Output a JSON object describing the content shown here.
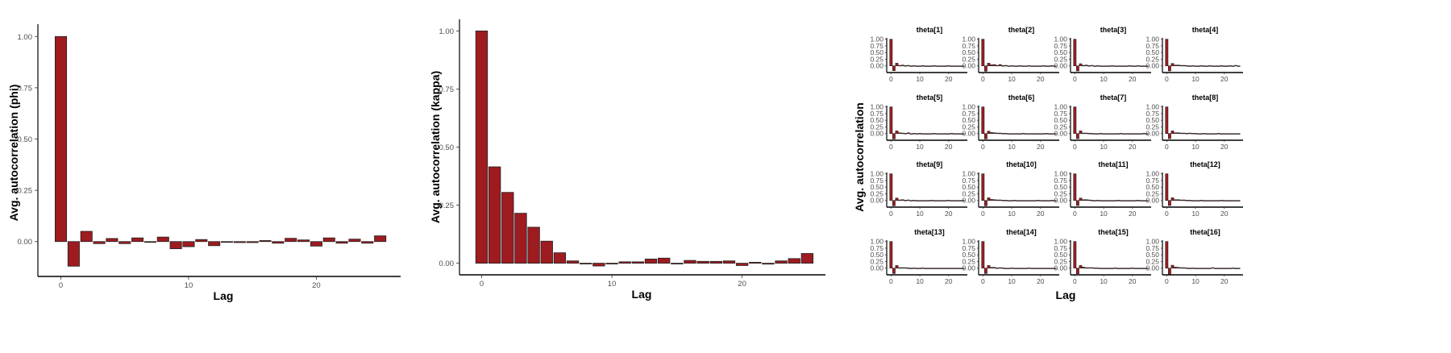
{
  "colors": {
    "bar_fill": "#9e1b20",
    "bar_stroke": "#222222",
    "axis": "#000000",
    "tick_text": "#4d4d4d"
  },
  "chart_data": [
    {
      "type": "bar",
      "xlabel": "Lag",
      "ylabel": "Avg. autocorrelation (phi)",
      "x": [
        0,
        1,
        2,
        3,
        4,
        5,
        6,
        7,
        8,
        9,
        10,
        11,
        12,
        13,
        14,
        15,
        16,
        17,
        18,
        19,
        20,
        21,
        22,
        23,
        24,
        25
      ],
      "values": [
        1.0,
        -0.12,
        0.05,
        -0.01,
        0.015,
        -0.01,
        0.018,
        -0.002,
        0.022,
        -0.035,
        -0.025,
        0.01,
        -0.02,
        0.0,
        -0.005,
        -0.005,
        0.005,
        -0.008,
        0.016,
        0.008,
        -0.022,
        0.018,
        -0.008,
        0.012,
        -0.008,
        0.028
      ],
      "xlim": [
        -1.8,
        26.6
      ],
      "ylim": [
        -0.17,
        1.06
      ],
      "xticks": [
        0,
        10,
        20
      ],
      "xtick_labels": [
        "0",
        "10",
        "20"
      ],
      "yticks": [
        0,
        0.25,
        0.5,
        0.75,
        1.0
      ],
      "ytick_labels": [
        "0.00",
        "0.25",
        "0.50",
        "0.75",
        "1.00"
      ]
    },
    {
      "type": "bar",
      "xlabel": "Lag",
      "ylabel": "Avg. autocorrelation (kappa)",
      "x": [
        0,
        1,
        2,
        3,
        4,
        5,
        6,
        7,
        8,
        9,
        10,
        11,
        12,
        13,
        14,
        15,
        16,
        17,
        18,
        19,
        20,
        21,
        22,
        23,
        24,
        25
      ],
      "values": [
        1.0,
        0.415,
        0.305,
        0.215,
        0.155,
        0.095,
        0.045,
        0.01,
        -0.002,
        -0.012,
        0.0,
        0.006,
        0.006,
        0.018,
        0.022,
        -0.002,
        0.012,
        0.008,
        0.008,
        0.01,
        -0.01,
        0.004,
        -0.004,
        0.01,
        0.02,
        0.042
      ],
      "xlim": [
        -1.7,
        26.4
      ],
      "ylim": [
        -0.05,
        1.05
      ],
      "xticks": [
        0,
        10,
        20
      ],
      "xtick_labels": [
        "0",
        "10",
        "20"
      ],
      "yticks": [
        0,
        0.25,
        0.5,
        0.75,
        1.0
      ],
      "ytick_labels": [
        "0.00",
        "0.25",
        "0.50",
        "0.75",
        "1.00"
      ]
    },
    {
      "type": "bar",
      "xlabel": "Lag",
      "ylabel": "Avg. autocorrelation",
      "facets": [
        "theta[1]",
        "theta[2]",
        "theta[3]",
        "theta[4]",
        "theta[5]",
        "theta[6]",
        "theta[7]",
        "theta[8]",
        "theta[9]",
        "theta[10]",
        "theta[11]",
        "theta[12]",
        "theta[13]",
        "theta[14]",
        "theta[15]",
        "theta[16]"
      ],
      "x": [
        0,
        1,
        2,
        3,
        4,
        5,
        6,
        7,
        8,
        9,
        10,
        11,
        12,
        13,
        14,
        15,
        16,
        17,
        18,
        19,
        20,
        21,
        22,
        23,
        24,
        25
      ],
      "facet_values": [
        [
          1.0,
          -0.18,
          0.1,
          0.02,
          0.03,
          0.01,
          0.02,
          0.0,
          0.01,
          -0.01,
          0.0,
          0.01,
          0.0,
          -0.01,
          0.0,
          0.01,
          0.0,
          -0.01,
          0.0,
          0.0,
          0.01,
          0.0,
          -0.01,
          0.0,
          0.0,
          -0.01
        ],
        [
          1.0,
          -0.2,
          0.1,
          0.04,
          0.05,
          0.02,
          0.05,
          0.01,
          0.02,
          0.0,
          0.01,
          0.0,
          -0.01,
          0.01,
          0.0,
          0.0,
          0.01,
          0.0,
          0.0,
          -0.01,
          0.0,
          0.01,
          0.0,
          0.0,
          0.01,
          0.0
        ],
        [
          1.0,
          -0.19,
          0.08,
          0.02,
          0.03,
          0.01,
          0.02,
          0.0,
          0.01,
          0.0,
          0.0,
          -0.01,
          0.0,
          0.01,
          0.0,
          0.0,
          0.0,
          -0.02,
          0.0,
          0.01,
          0.0,
          0.0,
          0.01,
          0.0,
          0.0,
          -0.01
        ],
        [
          1.0,
          -0.19,
          0.09,
          0.03,
          0.03,
          0.02,
          0.02,
          0.01,
          0.0,
          0.01,
          0.0,
          0.0,
          0.01,
          0.0,
          0.0,
          0.01,
          0.0,
          0.0,
          0.0,
          0.01,
          0.0,
          0.0,
          0.01,
          0.0,
          0.02,
          0.0
        ],
        [
          1.0,
          -0.2,
          0.1,
          0.03,
          0.02,
          0.01,
          0.03,
          0.0,
          0.01,
          0.0,
          0.01,
          0.0,
          0.0,
          -0.01,
          0.0,
          0.01,
          0.0,
          0.0,
          -0.01,
          0.0,
          0.0,
          0.01,
          0.0,
          0.0,
          0.0,
          0.0
        ],
        [
          1.0,
          -0.2,
          0.09,
          0.04,
          0.03,
          0.02,
          0.02,
          0.01,
          0.01,
          0.0,
          0.0,
          -0.01,
          0.0,
          0.0,
          0.01,
          0.0,
          0.0,
          0.0,
          0.0,
          -0.01,
          0.0,
          0.0,
          0.01,
          0.0,
          0.0,
          0.0
        ],
        [
          1.0,
          -0.19,
          0.1,
          0.02,
          0.02,
          0.01,
          0.01,
          0.0,
          0.0,
          0.01,
          0.0,
          0.0,
          -0.01,
          0.0,
          0.0,
          0.0,
          0.01,
          0.0,
          0.0,
          0.0,
          0.0,
          0.0,
          0.0,
          0.0,
          0.01,
          0.0
        ],
        [
          1.0,
          -0.19,
          0.1,
          0.03,
          0.03,
          0.02,
          0.02,
          0.01,
          0.02,
          0.01,
          0.01,
          0.0,
          0.0,
          0.01,
          0.0,
          0.0,
          0.0,
          0.0,
          0.01,
          0.0,
          0.0,
          0.0,
          0.0,
          0.0,
          0.0,
          0.0
        ],
        [
          1.0,
          -0.2,
          0.09,
          0.02,
          0.03,
          0.01,
          0.02,
          0.0,
          0.01,
          0.0,
          0.0,
          0.0,
          0.0,
          0.0,
          0.01,
          0.0,
          0.0,
          -0.01,
          0.0,
          0.0,
          0.01,
          0.0,
          0.0,
          0.0,
          0.0,
          0.01
        ],
        [
          1.0,
          -0.2,
          0.1,
          0.04,
          0.03,
          0.02,
          0.02,
          0.01,
          0.01,
          0.0,
          0.0,
          0.01,
          0.0,
          0.0,
          0.0,
          -0.01,
          0.0,
          -0.02,
          0.0,
          0.01,
          0.0,
          0.0,
          0.0,
          0.0,
          0.01,
          0.0
        ],
        [
          1.0,
          -0.19,
          0.09,
          0.03,
          0.03,
          0.02,
          0.01,
          0.0,
          0.01,
          0.0,
          0.0,
          0.0,
          0.0,
          0.0,
          0.0,
          0.01,
          0.0,
          0.0,
          0.0,
          0.0,
          0.0,
          0.0,
          0.01,
          0.0,
          0.0,
          0.0
        ],
        [
          1.0,
          -0.19,
          0.1,
          0.03,
          0.03,
          0.02,
          0.02,
          0.01,
          0.01,
          0.0,
          0.0,
          0.0,
          0.01,
          0.0,
          0.0,
          0.0,
          0.0,
          0.0,
          0.0,
          0.01,
          0.0,
          0.0,
          0.0,
          0.0,
          0.0,
          0.0
        ],
        [
          1.0,
          -0.2,
          0.1,
          0.02,
          0.02,
          0.02,
          0.01,
          0.0,
          0.01,
          0.0,
          0.0,
          0.01,
          0.0,
          0.0,
          0.0,
          0.0,
          0.0,
          0.0,
          -0.01,
          0.0,
          0.0,
          0.0,
          0.0,
          0.0,
          0.0,
          0.0
        ],
        [
          1.0,
          -0.2,
          0.1,
          0.03,
          0.03,
          0.01,
          0.02,
          0.01,
          0.0,
          0.0,
          0.01,
          0.0,
          0.0,
          -0.01,
          0.0,
          0.0,
          0.01,
          0.0,
          0.0,
          0.0,
          0.0,
          -0.01,
          0.0,
          0.0,
          0.0,
          0.0
        ],
        [
          1.0,
          -0.21,
          0.1,
          0.04,
          0.02,
          0.02,
          0.02,
          0.01,
          0.01,
          -0.01,
          0.0,
          0.0,
          -0.02,
          0.0,
          0.01,
          0.0,
          0.0,
          0.0,
          0.0,
          0.0,
          0.01,
          0.0,
          0.0,
          0.0,
          0.0,
          0.0
        ],
        [
          1.0,
          -0.22,
          0.11,
          0.04,
          0.03,
          0.02,
          0.02,
          0.01,
          0.0,
          0.01,
          0.0,
          0.0,
          0.0,
          0.0,
          0.0,
          0.0,
          0.02,
          0.0,
          0.0,
          0.0,
          0.0,
          0.0,
          0.0,
          0.01,
          0.0,
          0.0
        ]
      ],
      "xlim": [
        -1.5,
        26.5
      ],
      "ylim": [
        -0.25,
        1.05
      ],
      "xticks": [
        0,
        10,
        20
      ],
      "xtick_labels": [
        "0",
        "10",
        "20"
      ],
      "yticks": [
        0,
        0.25,
        0.5,
        0.75,
        1.0
      ],
      "ytick_labels": [
        "0.00",
        "0.25",
        "0.50",
        "0.75",
        "1.00"
      ]
    }
  ]
}
